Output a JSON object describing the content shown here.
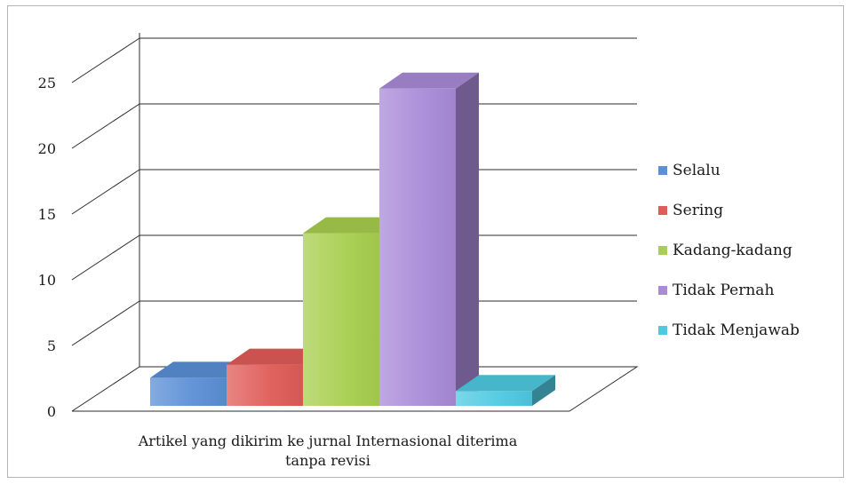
{
  "chart_data": {
    "type": "bar",
    "categories": [
      "Artikel yang dikirim ke jurnal Internasional diterima tanpa revisi"
    ],
    "series": [
      {
        "name": "Selalu",
        "values": [
          2
        ],
        "color": "#5b8fd6"
      },
      {
        "name": "Sering",
        "values": [
          3
        ],
        "color": "#e05c58"
      },
      {
        "name": "Kadang-kadang",
        "values": [
          13
        ],
        "color": "#a8cf4f"
      },
      {
        "name": "Tidak Pernah",
        "values": [
          24
        ],
        "color": "#a98bd8"
      },
      {
        "name": "Tidak Menjawab",
        "values": [
          1
        ],
        "color": "#4fc9e0"
      }
    ],
    "title": "",
    "xlabel": "",
    "ylabel": "",
    "ylim": [
      0,
      25
    ],
    "yticks": [
      "0",
      "5",
      "10",
      "15",
      "20",
      "25"
    ],
    "grid": true,
    "legend": "right",
    "three_d": true
  }
}
